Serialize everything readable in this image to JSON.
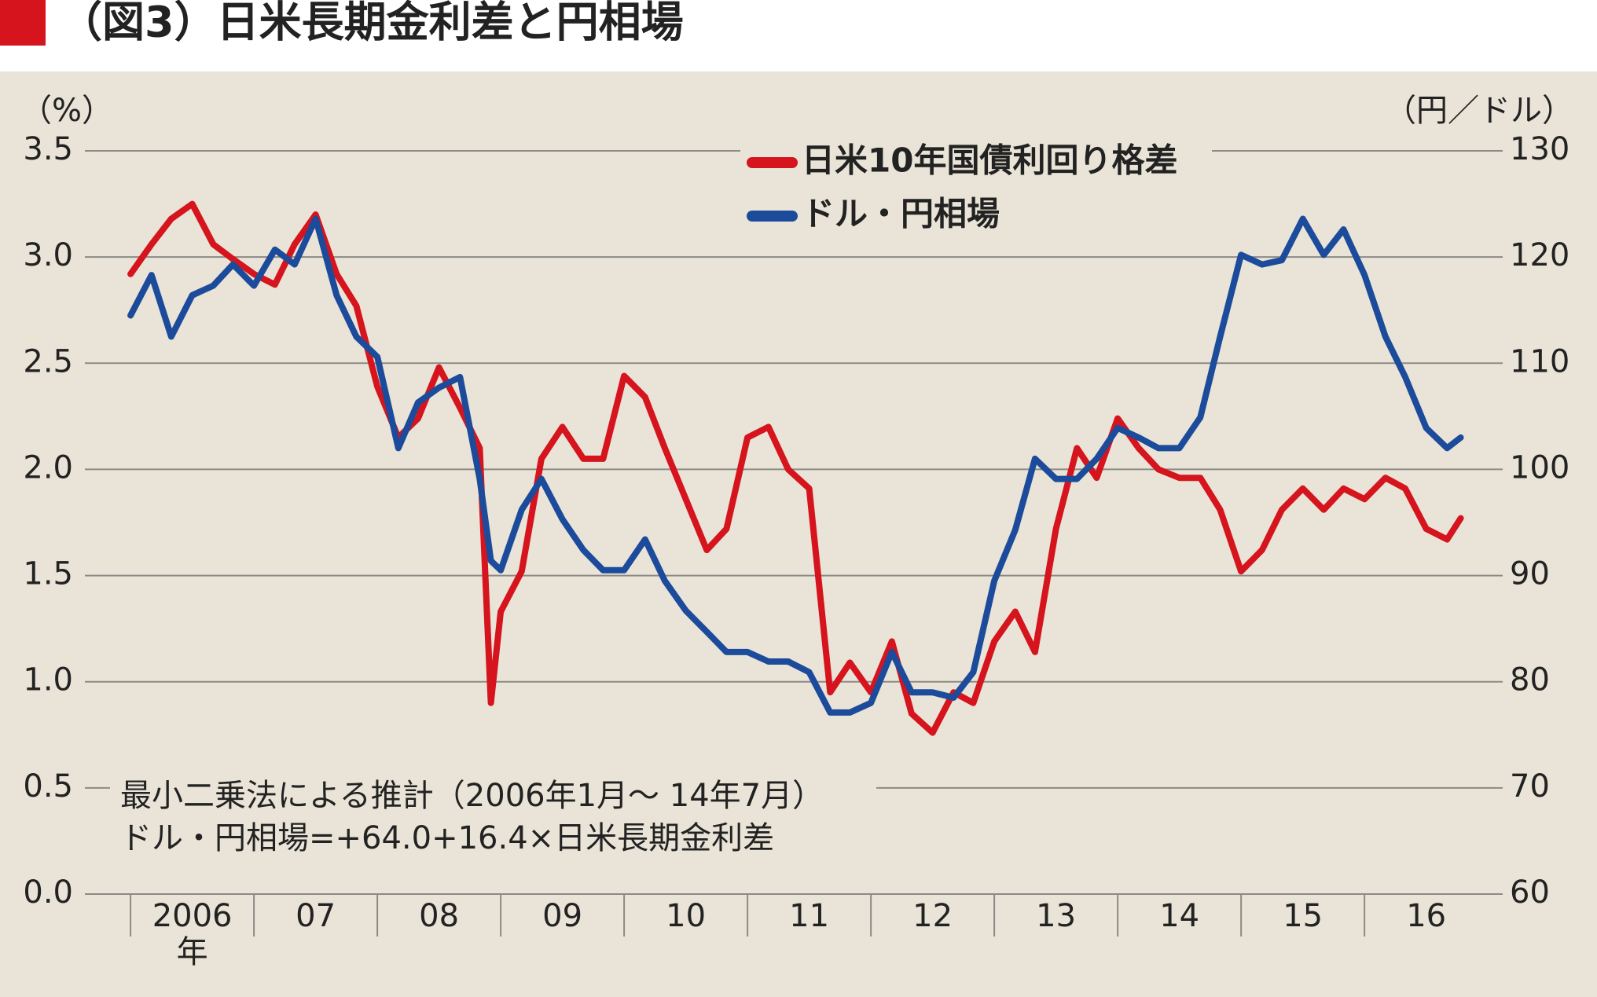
{
  "chart_data": {
    "type": "line",
    "title": "（図3）日米長期金利差と円相場",
    "y_unit_label": "（%）",
    "y2_unit_label": "（円／ドル）",
    "x_unit_label": "年",
    "annotations": [
      "最小二乗法による推計（2006年1月～ 14年7月）",
      "ドル・円相場=+64.0+16.4×日米長期金利差"
    ],
    "x": [
      2006,
      2006.17,
      2006.33,
      2006.5,
      2006.67,
      2006.83,
      2007,
      2007.17,
      2007.33,
      2007.5,
      2007.67,
      2007.83,
      2008,
      2008.17,
      2008.33,
      2008.5,
      2008.67,
      2008.83,
      2008.92,
      2009,
      2009.17,
      2009.33,
      2009.5,
      2009.67,
      2009.83,
      2010,
      2010.17,
      2010.33,
      2010.5,
      2010.67,
      2010.83,
      2011,
      2011.17,
      2011.33,
      2011.5,
      2011.67,
      2011.83,
      2012,
      2012.17,
      2012.33,
      2012.5,
      2012.67,
      2012.83,
      2013,
      2013.17,
      2013.33,
      2013.5,
      2013.67,
      2013.83,
      2014,
      2014.17,
      2014.33,
      2014.5,
      2014.67,
      2014.83,
      2015,
      2015.17,
      2015.33,
      2015.5,
      2015.67,
      2015.83,
      2016,
      2016.17,
      2016.33,
      2016.5,
      2016.67,
      2016.78
    ],
    "series": [
      {
        "name": "日米10年国債利回り格差",
        "color": "#d5141d",
        "values": [
          2.92,
          3.06,
          3.18,
          3.25,
          3.06,
          2.99,
          2.92,
          2.87,
          3.06,
          3.2,
          2.92,
          2.77,
          2.39,
          2.15,
          2.24,
          2.48,
          2.29,
          2.1,
          0.9,
          1.33,
          1.52,
          2.05,
          2.2,
          2.05,
          2.05,
          2.44,
          2.34,
          2.1,
          1.86,
          1.62,
          1.72,
          2.15,
          2.2,
          2.0,
          1.91,
          0.95,
          1.09,
          0.95,
          1.19,
          0.85,
          0.76,
          0.95,
          0.9,
          1.19,
          1.33,
          1.14,
          1.72,
          2.1,
          1.96,
          2.24,
          2.1,
          2.0,
          1.96,
          1.96,
          1.81,
          1.52,
          1.62,
          1.81,
          1.91,
          1.81,
          1.91,
          1.86,
          1.96,
          1.91,
          1.72,
          1.67,
          1.77
        ]
      },
      {
        "name": "ドル・円相場",
        "color": "#1c4b9c",
        "axis": "y2",
        "values": [
          114.5,
          118.3,
          112.5,
          116.4,
          117.3,
          119.3,
          117.3,
          120.7,
          119.3,
          123.6,
          116.4,
          112.5,
          110.6,
          102.0,
          106.3,
          107.7,
          108.7,
          99.1,
          91.4,
          90.5,
          96.2,
          99.1,
          95.3,
          92.4,
          90.5,
          90.5,
          93.4,
          89.5,
          86.7,
          84.7,
          82.8,
          82.8,
          81.9,
          81.9,
          80.9,
          77.1,
          77.1,
          78.0,
          82.8,
          79.0,
          79.0,
          78.5,
          80.9,
          89.5,
          94.3,
          101.0,
          99.1,
          99.1,
          101.0,
          103.9,
          103.0,
          102.0,
          102.0,
          104.9,
          112.5,
          120.2,
          119.3,
          119.7,
          123.6,
          120.2,
          122.6,
          118.3,
          112.5,
          108.7,
          103.9,
          102.0,
          103.0
        ]
      }
    ],
    "xlim": [
      2005.63,
      2017.12
    ],
    "xticks": [
      {
        "value": 2006.5,
        "label": "2006"
      },
      {
        "value": 2007.5,
        "label": "07"
      },
      {
        "value": 2008.5,
        "label": "08"
      },
      {
        "value": 2009.5,
        "label": "09"
      },
      {
        "value": 2010.5,
        "label": "10"
      },
      {
        "value": 2011.5,
        "label": "11"
      },
      {
        "value": 2012.5,
        "label": "12"
      },
      {
        "value": 2013.5,
        "label": "13"
      },
      {
        "value": 2014.5,
        "label": "14"
      },
      {
        "value": 2015.5,
        "label": "15"
      },
      {
        "value": 2016.5,
        "label": "16"
      }
    ],
    "ylim": [
      0,
      3.5
    ],
    "yticks": [
      {
        "value": 0,
        "label": "0.0"
      },
      0.5,
      {
        "value": 1,
        "label": "1.0"
      },
      1.5,
      {
        "value": 2,
        "label": "2.0"
      },
      2.5,
      {
        "value": 3,
        "label": "3.0"
      },
      3.5
    ],
    "y2lim": [
      60,
      130
    ],
    "y2ticks": [
      60,
      70,
      80,
      90,
      100,
      110,
      120,
      130
    ],
    "grid": true
  }
}
